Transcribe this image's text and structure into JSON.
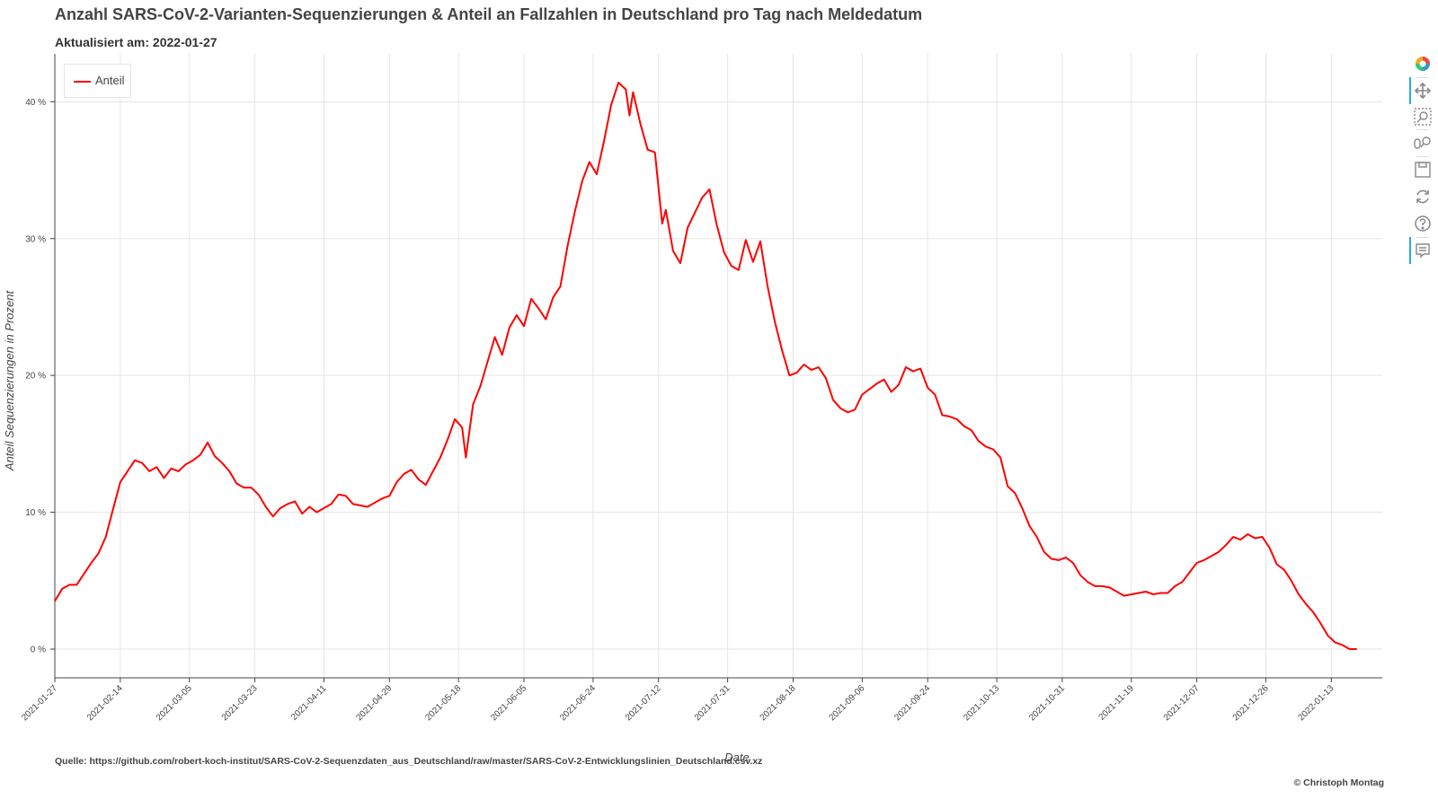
{
  "header": {
    "title": "Anzahl SARS-CoV-2-Varianten-Sequenzierungen & Anteil an Fallzahlen in Deutschland pro Tag nach Meldedatum",
    "subtitle": "Aktualisiert am: 2022-01-27"
  },
  "footer": {
    "source": "Quelle: https://github.com/robert-koch-institut/SARS-CoV-2-Sequenzdaten_aus_Deutschland/raw/master/SARS-CoV-2-Entwicklungslinien_Deutschland.csv.xz",
    "copyright": "© Christoph Montag"
  },
  "toolbar": {
    "tools": [
      {
        "name": "bokeh-logo-icon",
        "active": false
      },
      {
        "name": "pan-icon",
        "active": true
      },
      {
        "name": "box-zoom-icon",
        "active": false
      },
      {
        "name": "wheel-zoom-icon",
        "active": false
      },
      {
        "name": "save-icon",
        "active": false
      },
      {
        "name": "reset-icon",
        "active": false
      },
      {
        "name": "help-icon",
        "active": false
      },
      {
        "name": "hover-icon",
        "active": true
      }
    ]
  },
  "chart_data": {
    "type": "line",
    "xlabel": "Date",
    "ylabel": "Anteil Sequenzierungen in Prozent",
    "xlim": [
      "2021-01-27",
      "2022-01-27"
    ],
    "ylim": [
      -2.1,
      43.5
    ],
    "y_ticks": [
      0,
      10,
      20,
      30,
      40
    ],
    "y_tick_labels": [
      "0 %",
      "10 %",
      "20 %",
      "30 %",
      "40 %"
    ],
    "x_ticks": [
      "2021-01-27",
      "2021-02-14",
      "2021-03-05",
      "2021-03-23",
      "2021-04-11",
      "2021-04-29",
      "2021-05-18",
      "2021-06-05",
      "2021-06-24",
      "2021-07-12",
      "2021-07-31",
      "2021-08-18",
      "2021-09-06",
      "2021-09-24",
      "2021-10-13",
      "2021-10-31",
      "2021-11-19",
      "2021-12-07",
      "2021-12-26",
      "2022-01-13"
    ],
    "grid": true,
    "legend_position": "top-left",
    "colors": {
      "line": "#ff0000",
      "grid": "#e5e5e5",
      "axis": "#444444"
    },
    "series": [
      {
        "name": "Anteil",
        "points": [
          [
            "2021-01-27",
            3.5
          ],
          [
            "2021-01-29",
            4.4
          ],
          [
            "2021-01-31",
            4.7
          ],
          [
            "2021-02-02",
            4.7
          ],
          [
            "2021-02-04",
            5.5
          ],
          [
            "2021-02-06",
            6.3
          ],
          [
            "2021-02-08",
            7.0
          ],
          [
            "2021-02-10",
            8.2
          ],
          [
            "2021-02-12",
            10.2
          ],
          [
            "2021-02-14",
            12.2
          ],
          [
            "2021-02-16",
            13.0
          ],
          [
            "2021-02-18",
            13.8
          ],
          [
            "2021-02-20",
            13.6
          ],
          [
            "2021-02-22",
            13.0
          ],
          [
            "2021-02-24",
            13.3
          ],
          [
            "2021-02-26",
            12.5
          ],
          [
            "2021-02-28",
            13.2
          ],
          [
            "2021-03-02",
            13.0
          ],
          [
            "2021-03-04",
            13.5
          ],
          [
            "2021-03-06",
            13.8
          ],
          [
            "2021-03-08",
            14.2
          ],
          [
            "2021-03-10",
            15.1
          ],
          [
            "2021-03-12",
            14.1
          ],
          [
            "2021-03-14",
            13.6
          ],
          [
            "2021-03-16",
            13.0
          ],
          [
            "2021-03-18",
            12.1
          ],
          [
            "2021-03-20",
            11.8
          ],
          [
            "2021-03-22",
            11.8
          ],
          [
            "2021-03-24",
            11.3
          ],
          [
            "2021-03-26",
            10.4
          ],
          [
            "2021-03-28",
            9.7
          ],
          [
            "2021-03-30",
            10.3
          ],
          [
            "2021-04-01",
            10.6
          ],
          [
            "2021-04-03",
            10.8
          ],
          [
            "2021-04-05",
            9.9
          ],
          [
            "2021-04-07",
            10.4
          ],
          [
            "2021-04-09",
            10.0
          ],
          [
            "2021-04-11",
            10.3
          ],
          [
            "2021-04-13",
            10.6
          ],
          [
            "2021-04-15",
            11.3
          ],
          [
            "2021-04-17",
            11.2
          ],
          [
            "2021-04-19",
            10.6
          ],
          [
            "2021-04-21",
            10.5
          ],
          [
            "2021-04-23",
            10.4
          ],
          [
            "2021-04-25",
            10.7
          ],
          [
            "2021-04-27",
            11.0
          ],
          [
            "2021-04-29",
            11.2
          ],
          [
            "2021-05-01",
            12.2
          ],
          [
            "2021-05-03",
            12.8
          ],
          [
            "2021-05-05",
            13.1
          ],
          [
            "2021-05-07",
            12.4
          ],
          [
            "2021-05-09",
            12.0
          ],
          [
            "2021-05-11",
            13.0
          ],
          [
            "2021-05-13",
            14.0
          ],
          [
            "2021-05-15",
            15.3
          ],
          [
            "2021-05-17",
            16.8
          ],
          [
            "2021-05-19",
            16.2
          ],
          [
            "2021-05-20",
            14.0
          ],
          [
            "2021-05-22",
            17.9
          ],
          [
            "2021-05-24",
            19.2
          ],
          [
            "2021-05-26",
            21.0
          ],
          [
            "2021-05-28",
            22.8
          ],
          [
            "2021-05-30",
            21.5
          ],
          [
            "2021-06-01",
            23.5
          ],
          [
            "2021-06-03",
            24.4
          ],
          [
            "2021-06-05",
            23.6
          ],
          [
            "2021-06-07",
            25.6
          ],
          [
            "2021-06-09",
            24.9
          ],
          [
            "2021-06-11",
            24.1
          ],
          [
            "2021-06-13",
            25.7
          ],
          [
            "2021-06-15",
            26.5
          ],
          [
            "2021-06-17",
            29.5
          ],
          [
            "2021-06-19",
            32.0
          ],
          [
            "2021-06-21",
            34.2
          ],
          [
            "2021-06-23",
            35.6
          ],
          [
            "2021-06-25",
            34.7
          ],
          [
            "2021-06-27",
            37.1
          ],
          [
            "2021-06-29",
            39.8
          ],
          [
            "2021-07-01",
            41.4
          ],
          [
            "2021-07-03",
            40.9
          ],
          [
            "2021-07-04",
            39.0
          ],
          [
            "2021-07-05",
            40.7
          ],
          [
            "2021-07-07",
            38.4
          ],
          [
            "2021-07-09",
            36.5
          ],
          [
            "2021-07-11",
            36.3
          ],
          [
            "2021-07-13",
            31.1
          ],
          [
            "2021-07-14",
            32.1
          ],
          [
            "2021-07-16",
            29.1
          ],
          [
            "2021-07-18",
            28.2
          ],
          [
            "2021-07-20",
            30.8
          ],
          [
            "2021-07-22",
            31.9
          ],
          [
            "2021-07-24",
            33.0
          ],
          [
            "2021-07-26",
            33.6
          ],
          [
            "2021-07-28",
            31.0
          ],
          [
            "2021-07-30",
            29.0
          ],
          [
            "2021-08-01",
            28.0
          ],
          [
            "2021-08-03",
            27.7
          ],
          [
            "2021-08-05",
            29.9
          ],
          [
            "2021-08-07",
            28.3
          ],
          [
            "2021-08-09",
            29.8
          ],
          [
            "2021-08-11",
            26.5
          ],
          [
            "2021-08-13",
            23.9
          ],
          [
            "2021-08-15",
            21.8
          ],
          [
            "2021-08-17",
            20.0
          ],
          [
            "2021-08-19",
            20.2
          ],
          [
            "2021-08-21",
            20.8
          ],
          [
            "2021-08-23",
            20.4
          ],
          [
            "2021-08-25",
            20.6
          ],
          [
            "2021-08-27",
            19.8
          ],
          [
            "2021-08-29",
            18.2
          ],
          [
            "2021-08-31",
            17.6
          ],
          [
            "2021-09-02",
            17.3
          ],
          [
            "2021-09-04",
            17.5
          ],
          [
            "2021-09-06",
            18.6
          ],
          [
            "2021-09-08",
            19.0
          ],
          [
            "2021-09-10",
            19.4
          ],
          [
            "2021-09-12",
            19.7
          ],
          [
            "2021-09-14",
            18.8
          ],
          [
            "2021-09-16",
            19.3
          ],
          [
            "2021-09-18",
            20.6
          ],
          [
            "2021-09-20",
            20.3
          ],
          [
            "2021-09-22",
            20.5
          ],
          [
            "2021-09-24",
            19.1
          ],
          [
            "2021-09-26",
            18.6
          ],
          [
            "2021-09-28",
            17.1
          ],
          [
            "2021-09-30",
            17.0
          ],
          [
            "2021-10-02",
            16.8
          ],
          [
            "2021-10-04",
            16.3
          ],
          [
            "2021-10-06",
            16.0
          ],
          [
            "2021-10-08",
            15.2
          ],
          [
            "2021-10-10",
            14.8
          ],
          [
            "2021-10-12",
            14.6
          ],
          [
            "2021-10-14",
            14.0
          ],
          [
            "2021-10-16",
            11.9
          ],
          [
            "2021-10-18",
            11.4
          ],
          [
            "2021-10-20",
            10.3
          ],
          [
            "2021-10-22",
            9.0
          ],
          [
            "2021-10-24",
            8.2
          ],
          [
            "2021-10-26",
            7.1
          ],
          [
            "2021-10-28",
            6.6
          ],
          [
            "2021-10-30",
            6.5
          ],
          [
            "2021-11-01",
            6.7
          ],
          [
            "2021-11-03",
            6.3
          ],
          [
            "2021-11-05",
            5.4
          ],
          [
            "2021-11-07",
            4.9
          ],
          [
            "2021-11-09",
            4.6
          ],
          [
            "2021-11-11",
            4.6
          ],
          [
            "2021-11-13",
            4.5
          ],
          [
            "2021-11-15",
            4.2
          ],
          [
            "2021-11-17",
            3.9
          ],
          [
            "2021-11-19",
            4.0
          ],
          [
            "2021-11-21",
            4.1
          ],
          [
            "2021-11-23",
            4.2
          ],
          [
            "2021-11-25",
            4.0
          ],
          [
            "2021-11-27",
            4.1
          ],
          [
            "2021-11-29",
            4.1
          ],
          [
            "2021-12-01",
            4.6
          ],
          [
            "2021-12-03",
            4.9
          ],
          [
            "2021-12-05",
            5.6
          ],
          [
            "2021-12-07",
            6.3
          ],
          [
            "2021-12-09",
            6.5
          ],
          [
            "2021-12-11",
            6.8
          ],
          [
            "2021-12-13",
            7.1
          ],
          [
            "2021-12-15",
            7.6
          ],
          [
            "2021-12-17",
            8.2
          ],
          [
            "2021-12-19",
            8.0
          ],
          [
            "2021-12-21",
            8.4
          ],
          [
            "2021-12-23",
            8.1
          ],
          [
            "2021-12-25",
            8.2
          ],
          [
            "2021-12-27",
            7.4
          ],
          [
            "2021-12-29",
            6.2
          ],
          [
            "2021-12-31",
            5.8
          ],
          [
            "2022-01-02",
            5.0
          ],
          [
            "2022-01-04",
            4.0
          ],
          [
            "2022-01-06",
            3.3
          ],
          [
            "2022-01-08",
            2.7
          ],
          [
            "2022-01-10",
            1.9
          ],
          [
            "2022-01-12",
            1.0
          ],
          [
            "2022-01-14",
            0.5
          ],
          [
            "2022-01-16",
            0.3
          ],
          [
            "2022-01-18",
            0.0
          ],
          [
            "2022-01-20",
            0.0
          ]
        ]
      }
    ]
  }
}
